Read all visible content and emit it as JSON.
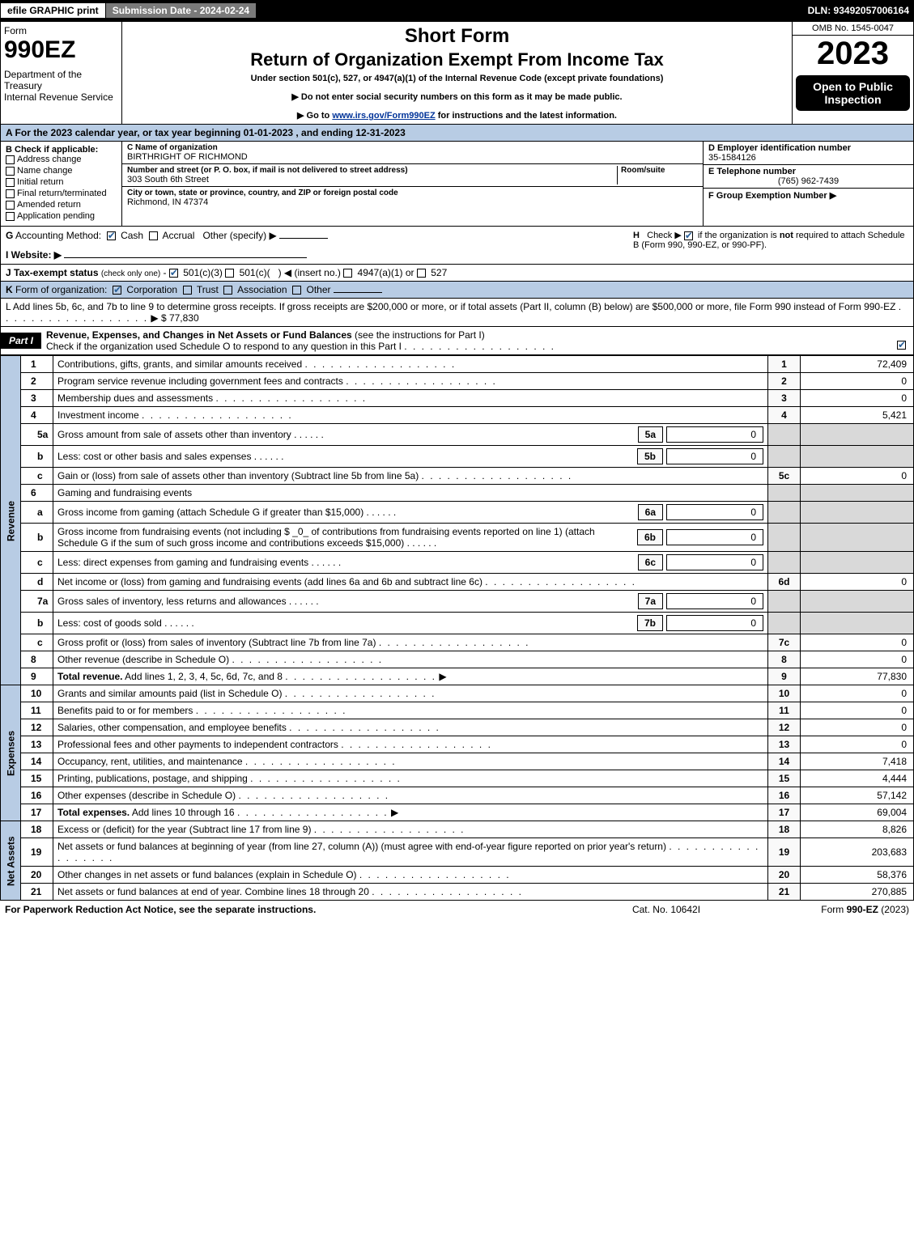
{
  "topbar": {
    "efile": "efile GRAPHIC print",
    "submission": "Submission Date - 2024-02-24",
    "dln": "DLN: 93492057006164"
  },
  "header": {
    "form_word": "Form",
    "form_num": "990EZ",
    "dept": "Department of the Treasury\nInternal Revenue Service",
    "title1": "Short Form",
    "title2": "Return of Organization Exempt From Income Tax",
    "under": "Under section 501(c), 527, or 4947(a)(1) of the Internal Revenue Code (except private foundations)",
    "note1": "▶ Do not enter social security numbers on this form as it may be made public.",
    "note2_pre": "▶ Go to ",
    "note2_link": "www.irs.gov/Form990EZ",
    "note2_post": " for instructions and the latest information.",
    "omb": "OMB No. 1545-0047",
    "year": "2023",
    "open": "Open to Public Inspection"
  },
  "A": "A  For the 2023 calendar year, or tax year beginning 01-01-2023 , and ending 12-31-2023",
  "B": {
    "label": "B  Check if applicable:",
    "opts": [
      "Address change",
      "Name change",
      "Initial return",
      "Final return/terminated",
      "Amended return",
      "Application pending"
    ]
  },
  "C": {
    "name_label": "C Name of organization",
    "name": "BIRTHRIGHT OF RICHMOND",
    "addr_label": "Number and street (or P. O. box, if mail is not delivered to street address)",
    "room_label": "Room/suite",
    "addr": "303 South 6th Street",
    "city_label": "City or town, state or province, country, and ZIP or foreign postal code",
    "city": "Richmond, IN  47374"
  },
  "D": {
    "label": "D Employer identification number",
    "val": "35-1584126"
  },
  "E": {
    "label": "E Telephone number",
    "val": "(765) 962-7439"
  },
  "F": {
    "label": "F Group Exemption Number  ▶",
    "val": ""
  },
  "G": "G Accounting Method:   ☑ Cash  ☐ Accrual   Other (specify) ▶",
  "H": "H   Check ▶ ☑ if the organization is not required to attach Schedule B (Form 990, 990-EZ, or 990-PF).",
  "I": "I Website: ▶",
  "J": "J Tax-exempt status (check only one) - ☑ 501(c)(3) ☐ 501(c)(  ) ◀ (insert no.) ☐ 4947(a)(1) or ☐ 527",
  "K": "K Form of organization:   ☑ Corporation  ☐ Trust  ☐ Association  ☐ Other",
  "L": {
    "text": "L Add lines 5b, 6c, and 7b to line 9 to determine gross receipts. If gross receipts are $200,000 or more, or if total assets (Part II, column (B) below) are $500,000 or more, file Form 990 instead of Form 990-EZ",
    "val": "▶ $ 77,830"
  },
  "partI": {
    "label": "Part I",
    "title": "Revenue, Expenses, and Changes in Net Assets or Fund Balances",
    "sub": "(see the instructions for Part I)",
    "check": "Check if the organization used Schedule O to respond to any question in this Part I"
  },
  "sides": {
    "rev": "Revenue",
    "exp": "Expenses",
    "net": "Net Assets"
  },
  "lines": [
    {
      "n": "1",
      "d": "Contributions, gifts, grants, and similar amounts received",
      "box": "1",
      "v": "72,409",
      "side": "rev"
    },
    {
      "n": "2",
      "d": "Program service revenue including government fees and contracts",
      "box": "2",
      "v": "0",
      "side": "rev"
    },
    {
      "n": "3",
      "d": "Membership dues and assessments",
      "box": "3",
      "v": "0",
      "side": "rev"
    },
    {
      "n": "4",
      "d": "Investment income",
      "box": "4",
      "v": "5,421",
      "side": "rev"
    },
    {
      "n": "5a",
      "d": "Gross amount from sale of assets other than inventory",
      "ibox": "5a",
      "iv": "0",
      "side": "rev",
      "sub": true
    },
    {
      "n": "b",
      "d": "Less: cost or other basis and sales expenses",
      "ibox": "5b",
      "iv": "0",
      "side": "rev",
      "sub": true
    },
    {
      "n": "c",
      "d": "Gain or (loss) from sale of assets other than inventory (Subtract line 5b from line 5a)",
      "box": "5c",
      "v": "0",
      "side": "rev",
      "sub": true
    },
    {
      "n": "6",
      "d": "Gaming and fundraising events",
      "side": "rev",
      "noval": true
    },
    {
      "n": "a",
      "d": "Gross income from gaming (attach Schedule G if greater than $15,000)",
      "ibox": "6a",
      "iv": "0",
      "side": "rev",
      "sub": true
    },
    {
      "n": "b",
      "d": "Gross income from fundraising events (not including $ _0_ of contributions from fundraising events reported on line 1) (attach Schedule G if the sum of such gross income and contributions exceeds $15,000)",
      "ibox": "6b",
      "iv": "0",
      "side": "rev",
      "sub": true
    },
    {
      "n": "c",
      "d": "Less: direct expenses from gaming and fundraising events",
      "ibox": "6c",
      "iv": "0",
      "side": "rev",
      "sub": true
    },
    {
      "n": "d",
      "d": "Net income or (loss) from gaming and fundraising events (add lines 6a and 6b and subtract line 6c)",
      "box": "6d",
      "v": "0",
      "side": "rev",
      "sub": true
    },
    {
      "n": "7a",
      "d": "Gross sales of inventory, less returns and allowances",
      "ibox": "7a",
      "iv": "0",
      "side": "rev",
      "sub": true
    },
    {
      "n": "b",
      "d": "Less: cost of goods sold",
      "ibox": "7b",
      "iv": "0",
      "side": "rev",
      "sub": true
    },
    {
      "n": "c",
      "d": "Gross profit or (loss) from sales of inventory (Subtract line 7b from line 7a)",
      "box": "7c",
      "v": "0",
      "side": "rev",
      "sub": true
    },
    {
      "n": "8",
      "d": "Other revenue (describe in Schedule O)",
      "box": "8",
      "v": "0",
      "side": "rev"
    },
    {
      "n": "9",
      "d": "Total revenue. Add lines 1, 2, 3, 4, 5c, 6d, 7c, and 8",
      "box": "9",
      "v": "77,830",
      "side": "rev",
      "bold": true,
      "arrow": true
    },
    {
      "n": "10",
      "d": "Grants and similar amounts paid (list in Schedule O)",
      "box": "10",
      "v": "0",
      "side": "exp"
    },
    {
      "n": "11",
      "d": "Benefits paid to or for members",
      "box": "11",
      "v": "0",
      "side": "exp"
    },
    {
      "n": "12",
      "d": "Salaries, other compensation, and employee benefits",
      "box": "12",
      "v": "0",
      "side": "exp"
    },
    {
      "n": "13",
      "d": "Professional fees and other payments to independent contractors",
      "box": "13",
      "v": "0",
      "side": "exp"
    },
    {
      "n": "14",
      "d": "Occupancy, rent, utilities, and maintenance",
      "box": "14",
      "v": "7,418",
      "side": "exp"
    },
    {
      "n": "15",
      "d": "Printing, publications, postage, and shipping",
      "box": "15",
      "v": "4,444",
      "side": "exp"
    },
    {
      "n": "16",
      "d": "Other expenses (describe in Schedule O)",
      "box": "16",
      "v": "57,142",
      "side": "exp"
    },
    {
      "n": "17",
      "d": "Total expenses. Add lines 10 through 16",
      "box": "17",
      "v": "69,004",
      "side": "exp",
      "bold": true,
      "arrow": true
    },
    {
      "n": "18",
      "d": "Excess or (deficit) for the year (Subtract line 17 from line 9)",
      "box": "18",
      "v": "8,826",
      "side": "net"
    },
    {
      "n": "19",
      "d": "Net assets or fund balances at beginning of year (from line 27, column (A)) (must agree with end-of-year figure reported on prior year's return)",
      "box": "19",
      "v": "203,683",
      "side": "net"
    },
    {
      "n": "20",
      "d": "Other changes in net assets or fund balances (explain in Schedule O)",
      "box": "20",
      "v": "58,376",
      "side": "net"
    },
    {
      "n": "21",
      "d": "Net assets or fund balances at end of year. Combine lines 18 through 20",
      "box": "21",
      "v": "270,885",
      "side": "net"
    }
  ],
  "footer": {
    "left": "For Paperwork Reduction Act Notice, see the separate instructions.",
    "mid": "Cat. No. 10642I",
    "right": "Form 990-EZ (2023)"
  },
  "colors": {
    "blue_bg": "#b8cce4",
    "black": "#000000",
    "link": "#003399"
  }
}
